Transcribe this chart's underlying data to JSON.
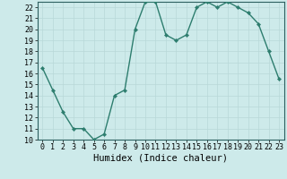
{
  "x": [
    0,
    1,
    2,
    3,
    4,
    5,
    6,
    7,
    8,
    9,
    10,
    11,
    12,
    13,
    14,
    15,
    16,
    17,
    18,
    19,
    20,
    21,
    22,
    23
  ],
  "y": [
    16.5,
    14.5,
    12.5,
    11.0,
    11.0,
    10.0,
    10.5,
    14.0,
    14.5,
    20.0,
    22.5,
    22.5,
    19.5,
    19.0,
    19.5,
    22.0,
    22.5,
    22.0,
    22.5,
    22.0,
    21.5,
    20.5,
    18.0,
    15.5
  ],
  "line_color": "#2d7d6e",
  "marker": "D",
  "markersize": 2.2,
  "bg_color": "#cdeaea",
  "grid_color": "#b8d8d8",
  "xlabel": "Humidex (Indice chaleur)",
  "ylim": [
    10,
    22.5
  ],
  "xlim": [
    -0.5,
    23.5
  ],
  "yticks": [
    10,
    11,
    12,
    13,
    14,
    15,
    16,
    17,
    18,
    19,
    20,
    21,
    22
  ],
  "xticks": [
    0,
    1,
    2,
    3,
    4,
    5,
    6,
    7,
    8,
    9,
    10,
    11,
    12,
    13,
    14,
    15,
    16,
    17,
    18,
    19,
    20,
    21,
    22,
    23
  ],
  "linewidth": 1.0,
  "xlabel_fontsize": 7.5,
  "tick_fontsize": 6.0,
  "spine_color": "#2d6060"
}
